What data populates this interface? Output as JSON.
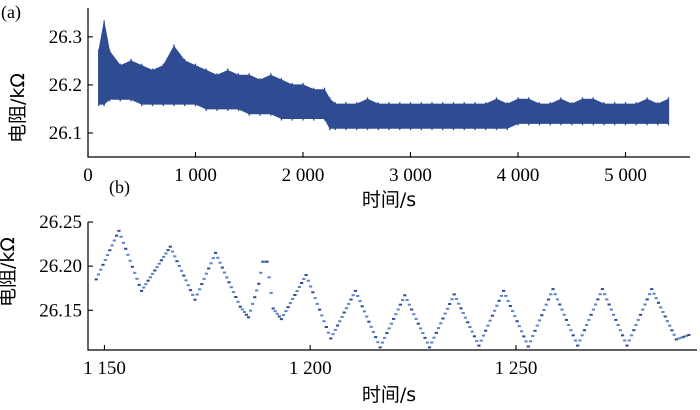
{
  "colors": {
    "series": "#2f4c93",
    "series_light": "#5d86c6",
    "axis": "#000000"
  },
  "chart_data": [
    {
      "panel_label": "(a)",
      "type": "line",
      "xlabel": "时间/s",
      "ylabel": "电阻/kΩ",
      "xlim": [
        0,
        5600
      ],
      "ylim": [
        26.05,
        26.36
      ],
      "xticks": [
        0,
        1000,
        2000,
        3000,
        4000,
        5000
      ],
      "xtick_labels": [
        "0",
        "1 000",
        "2 000",
        "3 000",
        "4 000",
        "5 000"
      ],
      "yticks": [
        26.1,
        26.2,
        26.3
      ],
      "ytick_labels": [
        "26.1",
        "26.2",
        "26.3"
      ],
      "grid": false,
      "series": [
        {
          "x": [
            100,
            150,
            200,
            300,
            400,
            500,
            600,
            700,
            800,
            900,
            1000,
            1100,
            1200,
            1300,
            1400,
            1500,
            1600,
            1700,
            1800,
            1900,
            2000,
            2100,
            2200,
            2250,
            2300,
            2400,
            2500,
            2600,
            2700,
            2800,
            2900,
            3000,
            3100,
            3200,
            3300,
            3400,
            3500,
            3600,
            3700,
            3800,
            3900,
            4000,
            4100,
            4200,
            4300,
            4400,
            4500,
            4600,
            4700,
            4800,
            4900,
            5000,
            5100,
            5200,
            5300,
            5400
          ],
          "y_min": [
            26.16,
            26.16,
            26.17,
            26.17,
            26.17,
            26.16,
            26.16,
            26.16,
            26.16,
            26.16,
            26.16,
            26.15,
            26.15,
            26.15,
            26.15,
            26.14,
            26.14,
            26.14,
            26.13,
            26.13,
            26.13,
            26.13,
            26.13,
            26.11,
            26.11,
            26.11,
            26.11,
            26.11,
            26.11,
            26.11,
            26.11,
            26.11,
            26.11,
            26.11,
            26.11,
            26.11,
            26.11,
            26.11,
            26.11,
            26.11,
            26.11,
            26.12,
            26.12,
            26.12,
            26.12,
            26.12,
            26.12,
            26.12,
            26.12,
            26.12,
            26.12,
            26.12,
            26.12,
            26.12,
            26.12,
            26.12
          ],
          "y_max": [
            26.27,
            26.33,
            26.27,
            26.24,
            26.25,
            26.24,
            26.23,
            26.24,
            26.28,
            26.25,
            26.24,
            26.23,
            26.22,
            26.23,
            26.22,
            26.22,
            26.21,
            26.22,
            26.21,
            26.2,
            26.2,
            26.19,
            26.19,
            26.17,
            26.16,
            26.16,
            26.16,
            26.17,
            26.16,
            26.16,
            26.16,
            26.16,
            26.16,
            26.16,
            26.16,
            26.16,
            26.16,
            26.16,
            26.16,
            26.17,
            26.16,
            26.17,
            26.17,
            26.16,
            26.16,
            26.17,
            26.16,
            26.17,
            26.17,
            26.16,
            26.16,
            26.16,
            26.16,
            26.17,
            26.16,
            26.17
          ]
        }
      ]
    },
    {
      "panel_label": "(b)",
      "type": "scatter",
      "xlabel": "时间/s",
      "ylabel": "电阻/kΩ",
      "xlim": [
        1146,
        1294
      ],
      "ylim": [
        26.105,
        26.25
      ],
      "xticks": [
        1150,
        1200,
        1250
      ],
      "xtick_labels": [
        "1 150",
        "1 200",
        "1 250"
      ],
      "yticks": [
        26.15,
        26.2,
        26.25
      ],
      "ytick_labels": [
        "26.15",
        "26.20",
        "26.25"
      ],
      "grid": false,
      "series": [
        {
          "x": [
            1148,
            1153.5,
            1159,
            1166,
            1172,
            1177,
            1183,
            1185,
            1187.5,
            1188.5,
            1189.5,
            1191,
            1193,
            1199,
            1205,
            1211,
            1217,
            1223,
            1229,
            1235,
            1241,
            1247,
            1253,
            1259,
            1265,
            1271,
            1277,
            1283,
            1289,
            1292
          ],
          "y": [
            26.185,
            26.24,
            26.172,
            26.222,
            26.162,
            26.215,
            26.154,
            26.142,
            26.18,
            26.205,
            26.205,
            26.152,
            26.14,
            26.19,
            26.118,
            26.172,
            26.108,
            26.167,
            26.108,
            26.168,
            26.11,
            26.172,
            26.109,
            26.174,
            26.11,
            26.174,
            26.11,
            26.174,
            26.117,
            26.122
          ]
        }
      ]
    }
  ]
}
